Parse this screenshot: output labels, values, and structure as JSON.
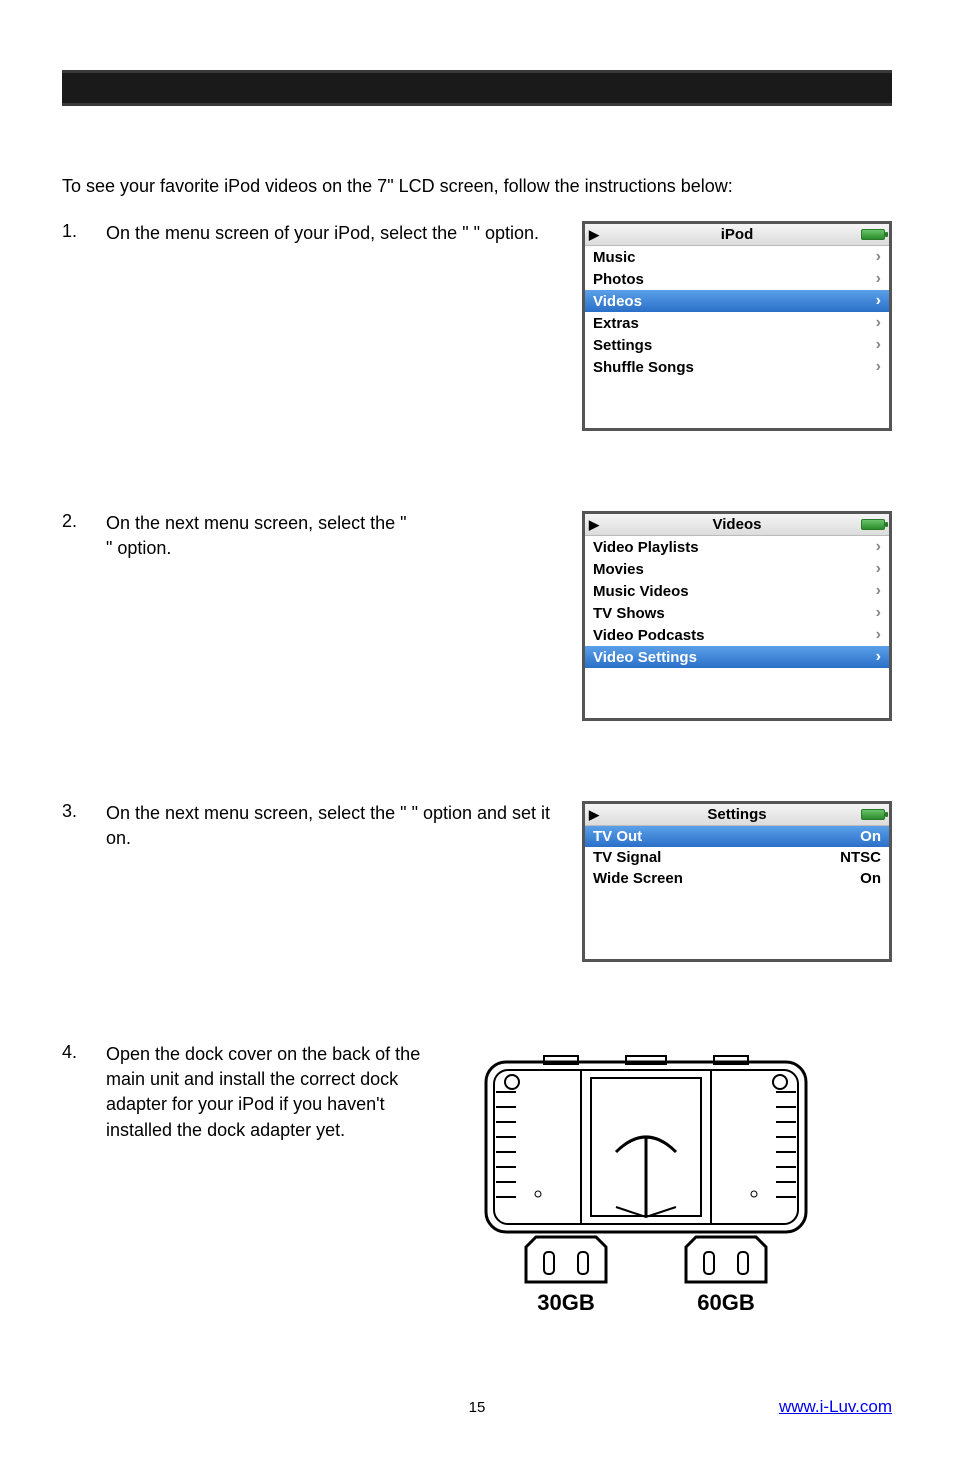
{
  "intro": "To see your favorite iPod videos on the 7\" LCD screen, follow the instructions below:",
  "steps": {
    "s1": {
      "num": "1.",
      "text_a": "On the menu screen of your iPod, select the \"",
      "text_b": "\" option."
    },
    "s2": {
      "num": "2.",
      "text_a": "On the next menu screen, select the \"",
      "text_b": "\" option."
    },
    "s3": {
      "num": "3.",
      "text_a": "On the next menu screen, select the \"",
      "text_b": "\" option and set it on."
    },
    "s4": {
      "num": "4.",
      "text": "Open the dock cover on the back of the main unit and install the correct dock adapter for your iPod if you haven't installed the dock adapter yet."
    }
  },
  "menu1": {
    "title": "iPod",
    "items": [
      {
        "label": "Music",
        "selected": false
      },
      {
        "label": "Photos",
        "selected": false
      },
      {
        "label": "Videos",
        "selected": true
      },
      {
        "label": "Extras",
        "selected": false
      },
      {
        "label": "Settings",
        "selected": false
      },
      {
        "label": "Shuffle Songs",
        "selected": false
      }
    ]
  },
  "menu2": {
    "title": "Videos",
    "items": [
      {
        "label": "Video Playlists",
        "selected": false
      },
      {
        "label": "Movies",
        "selected": false
      },
      {
        "label": "Music Videos",
        "selected": false
      },
      {
        "label": "TV Shows",
        "selected": false
      },
      {
        "label": "Video Podcasts",
        "selected": false
      },
      {
        "label": "Video Settings",
        "selected": true
      }
    ]
  },
  "menu3": {
    "title": "Settings",
    "items": [
      {
        "label": "TV Out",
        "value": "On",
        "selected": true
      },
      {
        "label": "TV Signal",
        "value": "NTSC",
        "selected": false
      },
      {
        "label": "Wide Screen",
        "value": "On",
        "selected": false
      }
    ]
  },
  "dock": {
    "label_left": "30GB",
    "label_right": "60GB"
  },
  "footer": {
    "page": "15",
    "link": "www.i-Luv.com"
  },
  "colors": {
    "selected_bg_top": "#5aa0e8",
    "selected_bg_bottom": "#2a6fc8",
    "arrow": "#888888",
    "border": "#555555"
  }
}
